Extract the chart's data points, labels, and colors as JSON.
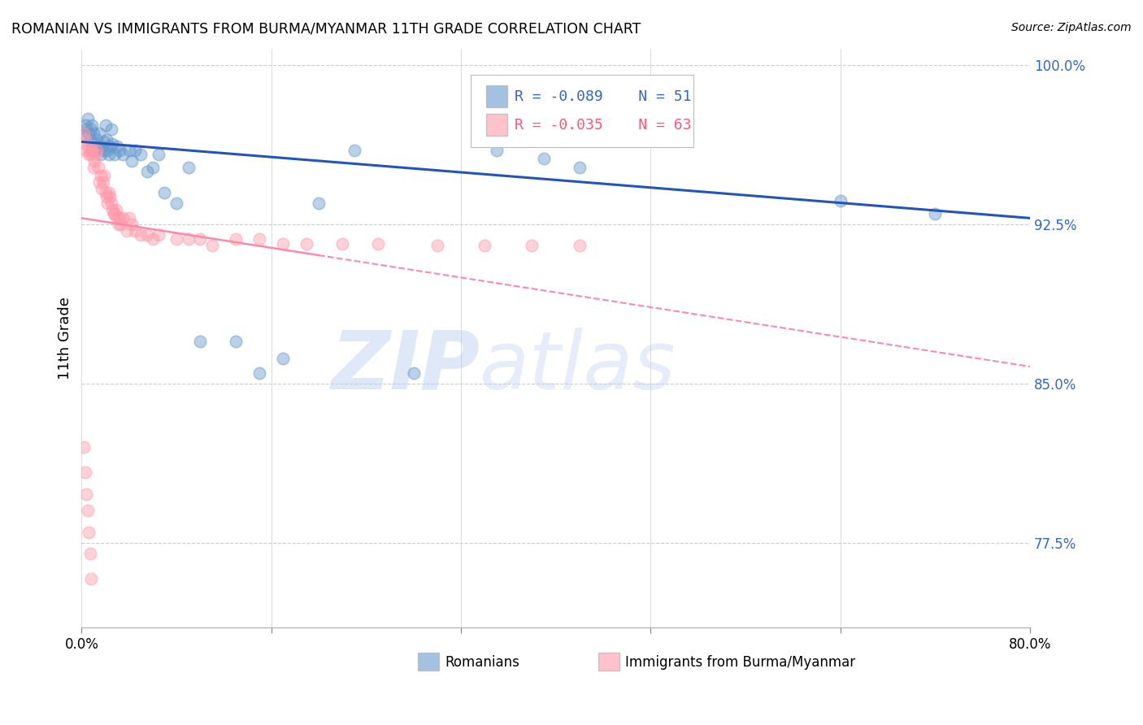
{
  "title": "ROMANIAN VS IMMIGRANTS FROM BURMA/MYANMAR 11TH GRADE CORRELATION CHART",
  "source": "Source: ZipAtlas.com",
  "ylabel": "11th Grade",
  "watermark": "ZIPatlas",
  "blue_label": "Romanians",
  "pink_label": "Immigrants from Burma/Myanmar",
  "blue_R": "R = -0.089",
  "blue_N": "N = 51",
  "pink_R": "R = -0.035",
  "pink_N": "N = 63",
  "blue_color": "#6699CC",
  "pink_color": "#FF99AA",
  "blue_line_color": "#2255BB",
  "pink_line_color": "#FF88AA",
  "xlim": [
    0.0,
    0.8
  ],
  "ylim": [
    0.735,
    1.008
  ],
  "ytick_vals": [
    1.0,
    0.925,
    0.85,
    0.775
  ],
  "ytick_labels": [
    "100.0%",
    "92.5%",
    "85.0%",
    "77.5%"
  ],
  "blue_scatter_x": [
    0.002,
    0.003,
    0.004,
    0.005,
    0.006,
    0.007,
    0.008,
    0.009,
    0.01,
    0.011,
    0.012,
    0.013,
    0.014,
    0.015,
    0.016,
    0.017,
    0.018,
    0.019,
    0.02,
    0.021,
    0.022,
    0.023,
    0.024,
    0.025,
    0.026,
    0.028,
    0.03,
    0.032,
    0.035,
    0.04,
    0.042,
    0.045,
    0.05,
    0.055,
    0.06,
    0.065,
    0.07,
    0.08,
    0.09,
    0.1,
    0.13,
    0.15,
    0.17,
    0.2,
    0.23,
    0.28,
    0.35,
    0.39,
    0.42,
    0.64,
    0.72
  ],
  "blue_scatter_y": [
    0.968,
    0.972,
    0.97,
    0.975,
    0.968,
    0.965,
    0.97,
    0.972,
    0.968,
    0.963,
    0.96,
    0.965,
    0.962,
    0.968,
    0.958,
    0.962,
    0.96,
    0.964,
    0.972,
    0.965,
    0.96,
    0.958,
    0.962,
    0.97,
    0.963,
    0.958,
    0.962,
    0.96,
    0.958,
    0.96,
    0.955,
    0.96,
    0.958,
    0.95,
    0.952,
    0.958,
    0.94,
    0.935,
    0.952,
    0.87,
    0.87,
    0.855,
    0.862,
    0.935,
    0.96,
    0.855,
    0.96,
    0.956,
    0.952,
    0.936,
    0.93
  ],
  "pink_scatter_x": [
    0.002,
    0.003,
    0.004,
    0.005,
    0.006,
    0.007,
    0.008,
    0.008,
    0.009,
    0.01,
    0.011,
    0.012,
    0.013,
    0.014,
    0.015,
    0.016,
    0.017,
    0.018,
    0.019,
    0.02,
    0.021,
    0.022,
    0.023,
    0.024,
    0.025,
    0.026,
    0.027,
    0.028,
    0.029,
    0.03,
    0.031,
    0.032,
    0.033,
    0.035,
    0.038,
    0.04,
    0.042,
    0.045,
    0.05,
    0.055,
    0.06,
    0.065,
    0.08,
    0.09,
    0.1,
    0.11,
    0.13,
    0.15,
    0.17,
    0.19,
    0.22,
    0.25,
    0.3,
    0.34,
    0.38,
    0.42,
    0.002,
    0.003,
    0.004,
    0.005,
    0.006,
    0.007,
    0.008
  ],
  "pink_scatter_y": [
    0.968,
    0.965,
    0.96,
    0.962,
    0.958,
    0.96,
    0.958,
    0.962,
    0.96,
    0.952,
    0.955,
    0.958,
    0.96,
    0.952,
    0.945,
    0.948,
    0.942,
    0.945,
    0.948,
    0.94,
    0.938,
    0.935,
    0.94,
    0.938,
    0.935,
    0.932,
    0.93,
    0.93,
    0.932,
    0.928,
    0.925,
    0.928,
    0.925,
    0.928,
    0.922,
    0.928,
    0.925,
    0.922,
    0.92,
    0.92,
    0.918,
    0.92,
    0.918,
    0.918,
    0.918,
    0.915,
    0.918,
    0.918,
    0.916,
    0.916,
    0.916,
    0.916,
    0.915,
    0.915,
    0.915,
    0.915,
    0.82,
    0.808,
    0.798,
    0.79,
    0.78,
    0.77,
    0.758
  ]
}
